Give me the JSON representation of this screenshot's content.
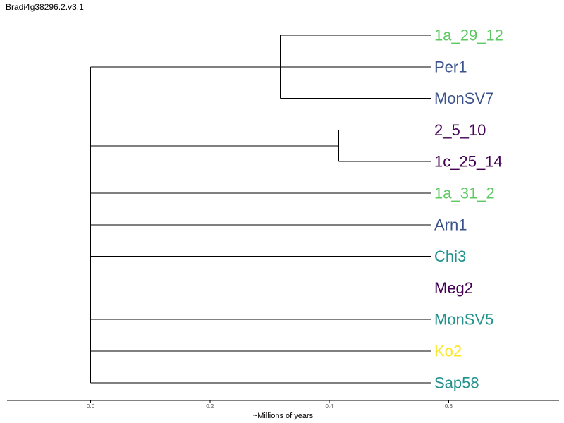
{
  "title": "Bradi4g38296.2.v3.1",
  "axis": {
    "label": "~Millions of years",
    "ticks": [
      "0.0",
      "0.2",
      "0.4",
      "0.6"
    ],
    "tick_values": [
      0.0,
      0.2,
      0.4,
      0.6
    ],
    "range": [
      -0.14,
      0.785
    ]
  },
  "chart_data": {
    "type": "dendrogram",
    "root_x": 0.0,
    "tips": [
      {
        "label": "1a_29_12",
        "color": "#5ec962"
      },
      {
        "label": "Per1",
        "color": "#3b528b"
      },
      {
        "label": "MonSV7",
        "color": "#3b528b"
      },
      {
        "label": "2_5_10",
        "color": "#440154"
      },
      {
        "label": "1c_25_14",
        "color": "#440154"
      },
      {
        "label": "1a_31_2",
        "color": "#5ec962"
      },
      {
        "label": "Arn1",
        "color": "#3b528b"
      },
      {
        "label": "Chi3",
        "color": "#21918c"
      },
      {
        "label": "Meg2",
        "color": "#440154"
      },
      {
        "label": "MonSV5",
        "color": "#21918c"
      },
      {
        "label": "Ko2",
        "color": "#fde725"
      },
      {
        "label": "Sap58",
        "color": "#21918c"
      }
    ],
    "tip_x": 0.57,
    "clades": [
      {
        "members": [
          0,
          1,
          2
        ],
        "node_x": 0.318
      },
      {
        "members": [
          3,
          4
        ],
        "node_x": 0.416
      },
      {
        "members": [
          5
        ],
        "node_x": null
      },
      {
        "members": [
          6
        ],
        "node_x": null
      },
      {
        "members": [
          7
        ],
        "node_x": null
      },
      {
        "members": [
          8
        ],
        "node_x": null
      },
      {
        "members": [
          9
        ],
        "node_x": null
      },
      {
        "members": [
          10
        ],
        "node_x": null
      },
      {
        "members": [
          11
        ],
        "node_x": null
      }
    ]
  }
}
